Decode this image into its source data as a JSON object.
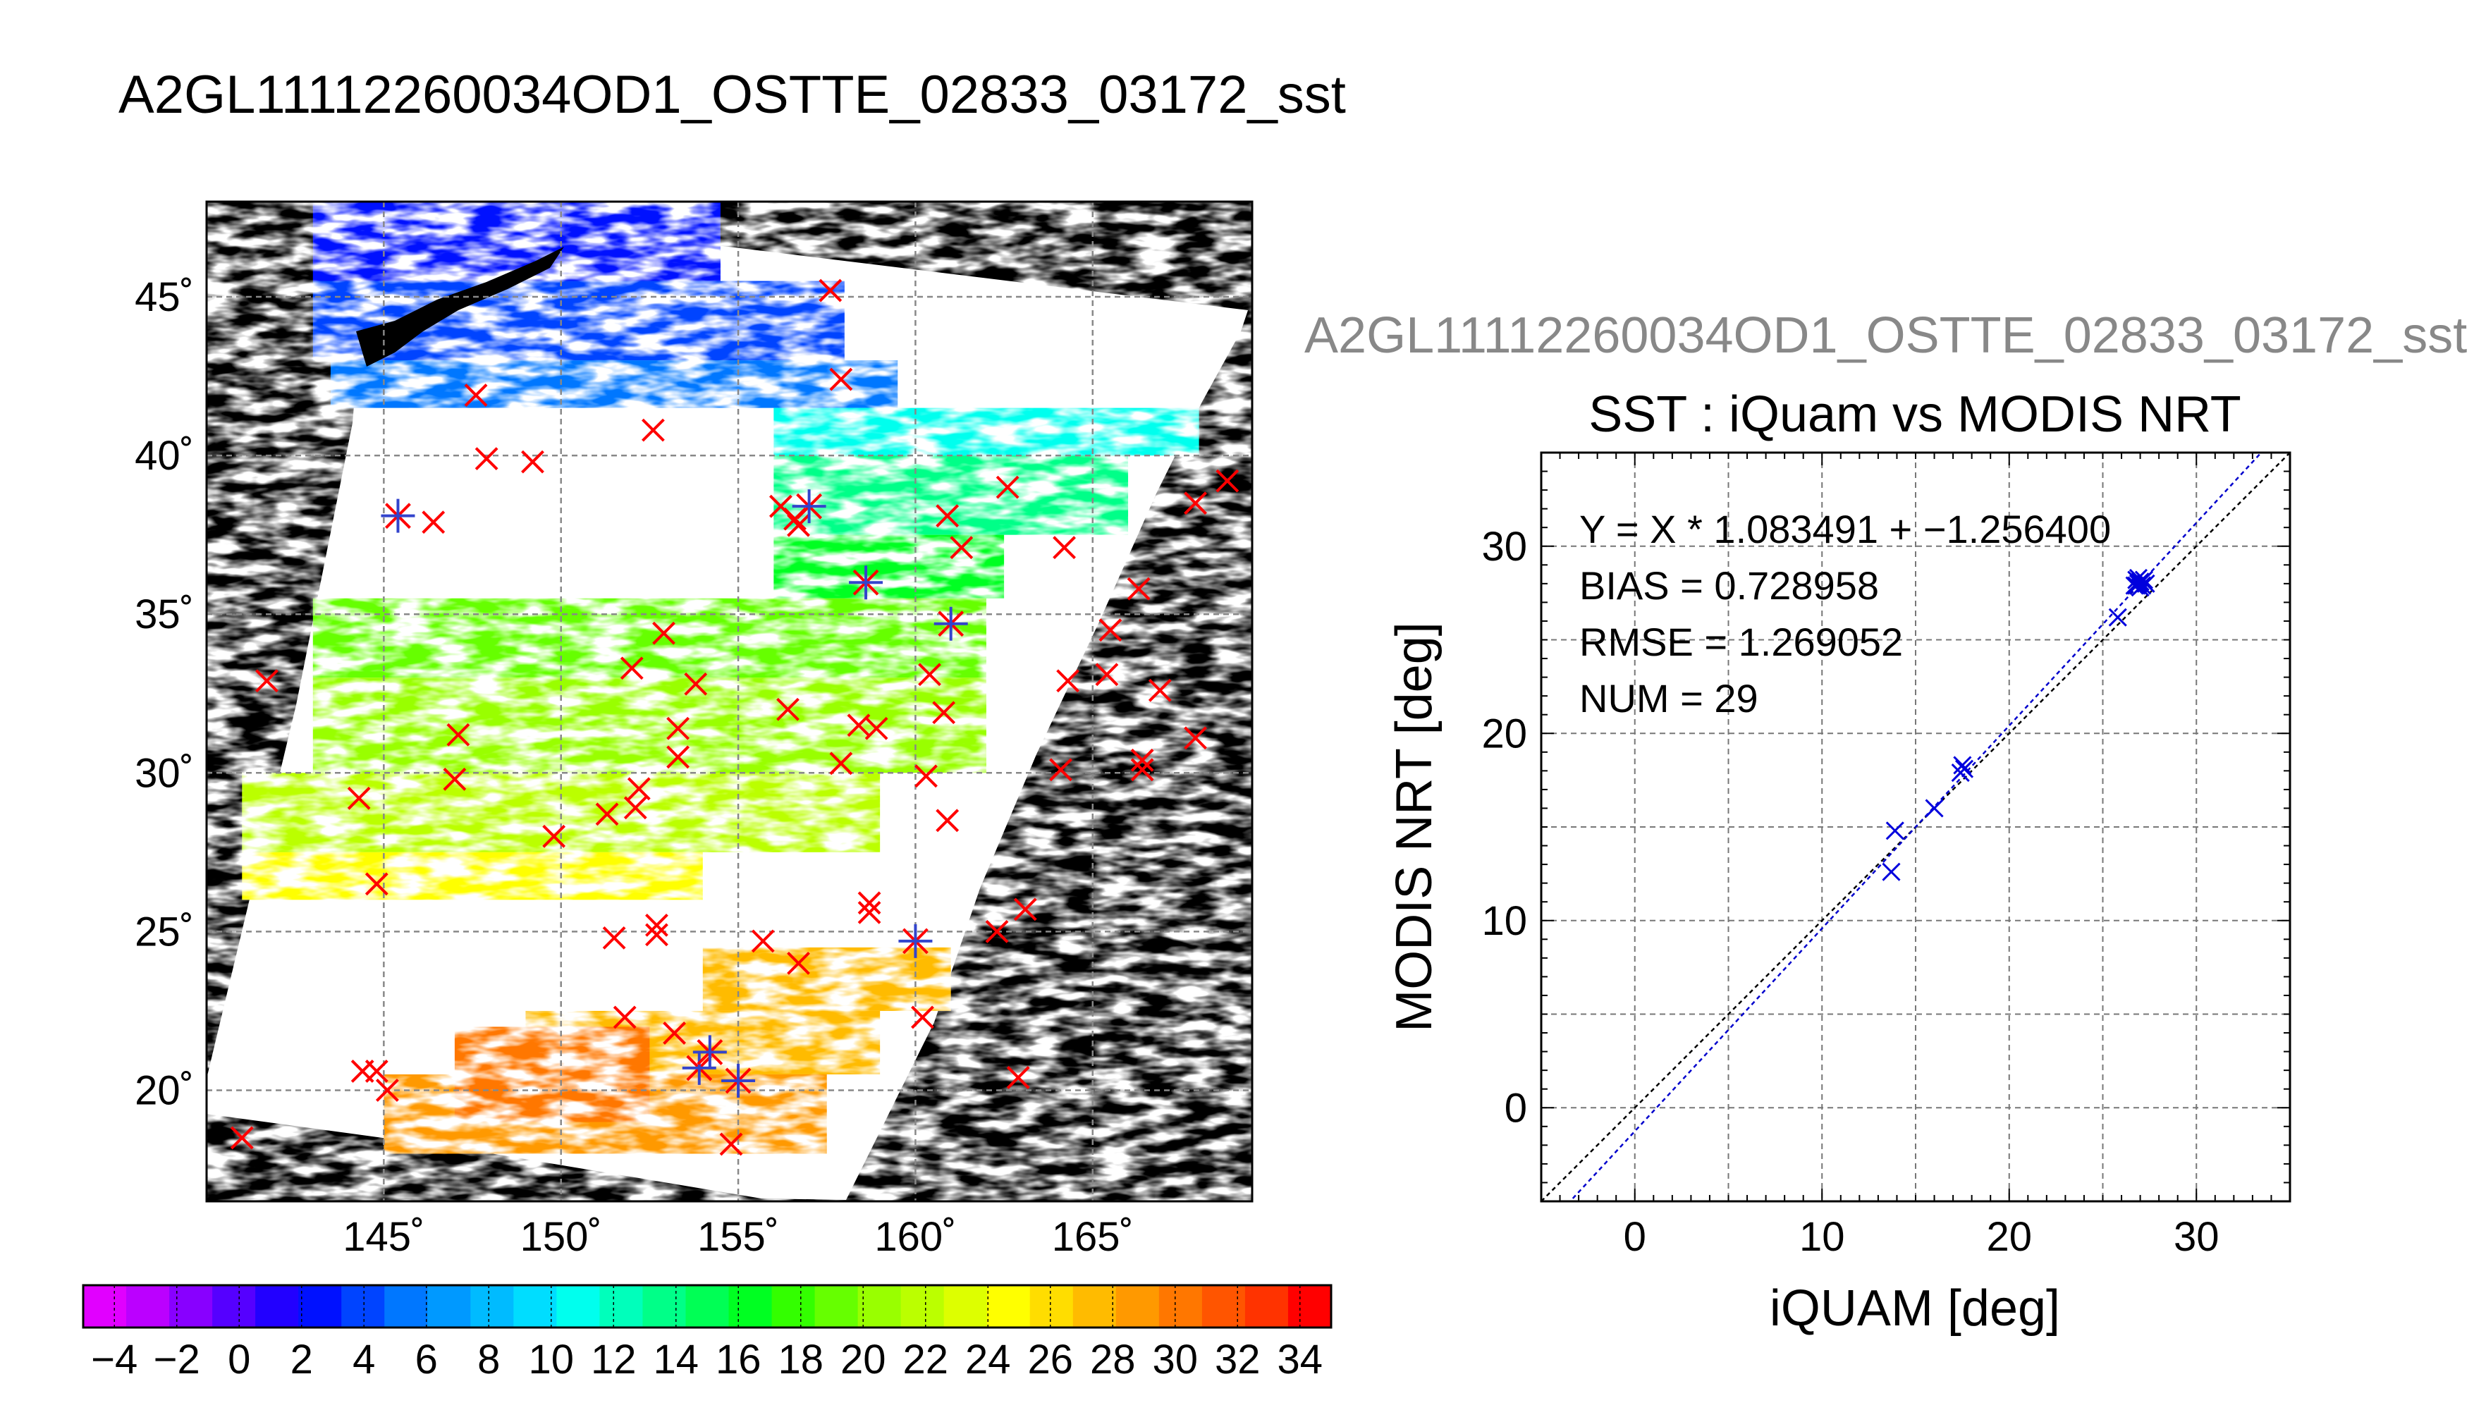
{
  "main_title": "A2GL11112260034OD1_OSTTE_02833_03172_sst",
  "scatter_subtitle": "A2GL11112260034OD1_OSTTE_02833_03172_sst",
  "chart_data": [
    {
      "type": "heatmap",
      "lat_ticks": [
        "45˚",
        "40˚",
        "35˚",
        "30˚",
        "25˚",
        "20˚"
      ],
      "lon_ticks": [
        "145˚",
        "150˚",
        "155˚",
        "160˚",
        "165˚"
      ],
      "lat_range": [
        16.5,
        48.0
      ],
      "lon_range": [
        140.0,
        169.5
      ],
      "colorbar": {
        "range": [
          -5,
          35
        ],
        "tick_labels": [
          "−4",
          "−2",
          "0",
          "2",
          "4",
          "6",
          "8",
          "10",
          "12",
          "14",
          "16",
          "18",
          "20",
          "22",
          "24",
          "26",
          "28",
          "30",
          "32",
          "34"
        ],
        "colors": [
          "#e100ff",
          "#bb00ff",
          "#8800ff",
          "#5500ff",
          "#2200ff",
          "#0011ff",
          "#0044ff",
          "#0077ff",
          "#0099ff",
          "#00bbff",
          "#00ddff",
          "#00ffee",
          "#00ffbb",
          "#00ff88",
          "#00ff55",
          "#00ff22",
          "#33ff00",
          "#66ff00",
          "#99ff00",
          "#bbff00",
          "#ddff00",
          "#ffff00",
          "#ffdd00",
          "#ffbb00",
          "#ff9900",
          "#ff7700",
          "#ff5500",
          "#ff3300",
          "#ff0000"
        ]
      },
      "markers_red": [
        [
          141.7,
          32.9
        ],
        [
          141.0,
          18.5
        ],
        [
          144.3,
          29.2
        ],
        [
          144.8,
          26.5
        ],
        [
          144.4,
          20.6
        ],
        [
          144.8,
          20.6
        ],
        [
          145.1,
          20.0
        ],
        [
          146.4,
          37.9
        ],
        [
          147.1,
          31.2
        ],
        [
          147.0,
          29.8
        ],
        [
          147.6,
          41.9
        ],
        [
          147.9,
          39.9
        ],
        [
          149.2,
          39.8
        ],
        [
          149.8,
          28.0
        ],
        [
          151.3,
          28.7
        ],
        [
          151.5,
          24.8
        ],
        [
          151.8,
          22.3
        ],
        [
          152.0,
          33.3
        ],
        [
          152.1,
          28.9
        ],
        [
          152.2,
          29.5
        ],
        [
          152.6,
          40.8
        ],
        [
          152.7,
          25.2
        ],
        [
          152.7,
          24.9
        ],
        [
          152.9,
          34.4
        ],
        [
          153.3,
          31.4
        ],
        [
          153.3,
          30.5
        ],
        [
          153.2,
          21.8
        ],
        [
          153.8,
          32.8
        ],
        [
          154.8,
          18.3
        ],
        [
          155.7,
          24.7
        ],
        [
          156.2,
          38.4
        ],
        [
          156.4,
          32.0
        ],
        [
          156.6,
          38.0
        ],
        [
          156.7,
          37.8
        ],
        [
          156.7,
          24.0
        ],
        [
          157.6,
          45.2
        ],
        [
          157.9,
          42.4
        ],
        [
          157.9,
          30.3
        ],
        [
          158.4,
          31.5
        ],
        [
          158.7,
          25.9
        ],
        [
          158.9,
          31.4
        ],
        [
          158.7,
          25.6
        ],
        [
          160.2,
          22.3
        ],
        [
          160.3,
          29.9
        ],
        [
          160.4,
          33.1
        ],
        [
          160.9,
          38.1
        ],
        [
          160.9,
          28.5
        ],
        [
          160.8,
          31.9
        ],
        [
          161.3,
          37.1
        ],
        [
          162.3,
          25.0
        ],
        [
          162.6,
          39.0
        ],
        [
          162.9,
          20.4
        ],
        [
          163.1,
          25.7
        ],
        [
          164.2,
          37.1
        ],
        [
          164.1,
          30.1
        ],
        [
          164.3,
          32.9
        ],
        [
          165.4,
          33.1
        ],
        [
          165.5,
          34.5
        ],
        [
          166.3,
          35.8
        ],
        [
          166.4,
          30.4
        ],
        [
          166.4,
          30.1
        ],
        [
          166.9,
          32.6
        ],
        [
          167.9,
          31.1
        ],
        [
          167.9,
          38.5
        ],
        [
          168.8,
          39.2
        ]
      ],
      "markers_blue": [
        [
          145.4,
          38.1
        ],
        [
          157.0,
          38.4
        ],
        [
          158.6,
          36.0
        ],
        [
          161.0,
          34.7
        ],
        [
          160.0,
          24.7
        ],
        [
          153.9,
          20.7
        ],
        [
          154.2,
          21.2
        ],
        [
          155.0,
          20.3
        ]
      ]
    },
    {
      "type": "scatter",
      "title": "SST : iQuam vs MODIS NRT",
      "xlabel": "iQUAM [deg]",
      "ylabel": "MODIS NRT [deg]",
      "xlim": [
        -5,
        35
      ],
      "ylim": [
        -5,
        35
      ],
      "ticks": [
        0,
        10,
        20,
        30
      ],
      "grid": true,
      "stats": {
        "equation": "Y = X * 1.083491 + −1.256400",
        "bias": "BIAS = 0.728958",
        "rmse": "RMSE = 1.269052",
        "num": "NUM = 29"
      },
      "fit": {
        "slope": 1.083491,
        "intercept": -1.2564
      },
      "points": [
        [
          13.7,
          12.6
        ],
        [
          13.9,
          14.8
        ],
        [
          16.0,
          16.0
        ],
        [
          17.4,
          17.9
        ],
        [
          17.5,
          18.3
        ],
        [
          17.6,
          18.1
        ],
        [
          25.8,
          26.2
        ],
        [
          26.7,
          27.9
        ],
        [
          26.8,
          28.2
        ],
        [
          26.9,
          28.0
        ],
        [
          27.0,
          28.1
        ],
        [
          27.1,
          27.9
        ],
        [
          26.9,
          28.3
        ],
        [
          27.2,
          28.2
        ],
        [
          27.0,
          27.8
        ],
        [
          26.8,
          27.9
        ],
        [
          27.3,
          28.0
        ]
      ]
    }
  ]
}
